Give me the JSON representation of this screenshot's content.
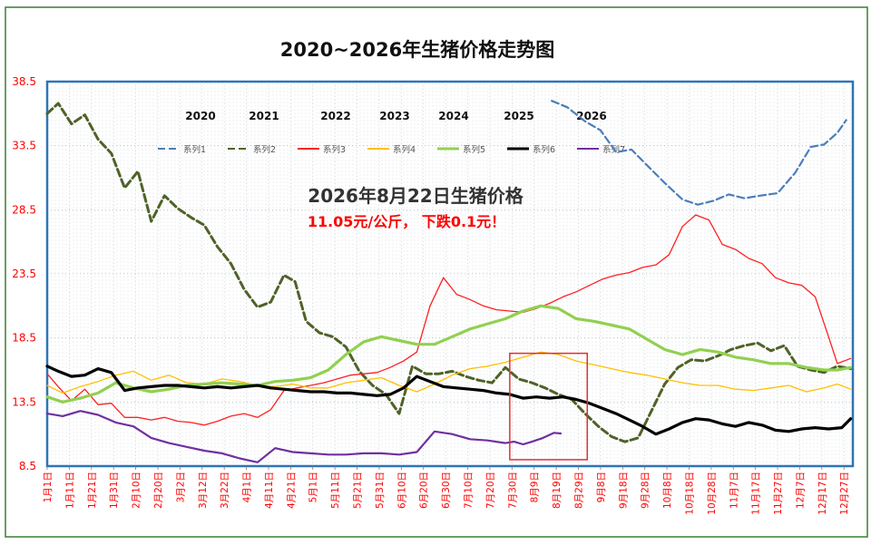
{
  "chart_data": {
    "type": "line",
    "title": "2020~2026年生猪价格走势图",
    "xlabel": "",
    "ylabel": "",
    "ylim": [
      8.5,
      38.5
    ],
    "yticks": [
      "8.5",
      "13.5",
      "18.5",
      "23.5",
      "28.5",
      "33.5",
      "38.5"
    ],
    "grid": "dotted",
    "legend_position": "top",
    "x_tick_labels": [
      "1月1日",
      "1月11日",
      "1月21日",
      "1月31日",
      "2月10日",
      "2月20日",
      "3月2日",
      "3月12日",
      "3月22日",
      "4月1日",
      "4月11日",
      "4月21日",
      "5月1日",
      "5月11日",
      "5月21日",
      "5月31日",
      "6月10日",
      "6月20日",
      "6月30日",
      "7月10日",
      "7月20日",
      "7月30日",
      "8月9日",
      "8月19日",
      "8月29日",
      "9月8日",
      "9月18日",
      "9月28日",
      "10月8日",
      "10月18日",
      "10月28日",
      "11月7日",
      "11月17日",
      "11月27日",
      "12月7日",
      "12月17日",
      "12月27日"
    ],
    "year_labels": [
      "2020",
      "2021",
      "2022",
      "2023",
      "2024",
      "2025",
      "2026"
    ],
    "annotation_title": "2026年8月22日生猪价格",
    "annotation_text": "11.05元/公斤，  下跌0.1元！",
    "highlight_box": {
      "x_from": 210,
      "x_to": 245,
      "y_from": 9.0,
      "y_to": 17.3
    },
    "series": [
      {
        "name": "系列1",
        "color": "#4a7ebb",
        "dash": "8,4",
        "x": [
          229,
          236,
          244,
          251,
          258,
          265,
          273,
          280,
          288,
          295,
          302,
          309,
          316,
          323,
          331,
          339,
          346,
          352,
          358,
          362
        ],
        "y": [
          37.0,
          36.5,
          35.4,
          34.7,
          33.0,
          33.2,
          31.8,
          30.6,
          29.3,
          28.9,
          29.2,
          29.7,
          29.4,
          29.6,
          29.8,
          31.4,
          33.4,
          33.6,
          34.5,
          35.5
        ]
      },
      {
        "name": "系列2",
        "color": "#4f6228",
        "dash": "8,4",
        "x": [
          1,
          6,
          12,
          18,
          24,
          30,
          36,
          42,
          48,
          54,
          60,
          66,
          72,
          78,
          84,
          90,
          96,
          102,
          108,
          113,
          118,
          124,
          130,
          136,
          142,
          148,
          154,
          160,
          166,
          172,
          178,
          184,
          190,
          196,
          202,
          208,
          214,
          220,
          226,
          232,
          238,
          244,
          250,
          256,
          262,
          268,
          274,
          280,
          286,
          292,
          298,
          304,
          310,
          316,
          322,
          328,
          334,
          340,
          346,
          352,
          358,
          364
        ],
        "y": [
          36.0,
          36.8,
          35.2,
          35.9,
          34.0,
          32.9,
          30.2,
          31.5,
          27.6,
          29.6,
          28.6,
          27.9,
          27.3,
          25.6,
          24.3,
          22.3,
          20.9,
          21.3,
          23.4,
          22.9,
          19.8,
          18.9,
          18.6,
          17.8,
          15.9,
          14.8,
          14.1,
          12.6,
          16.3,
          15.7,
          15.7,
          15.9,
          15.5,
          15.2,
          15.0,
          16.2,
          15.3,
          15.0,
          14.6,
          14.1,
          13.7,
          12.6,
          11.6,
          10.8,
          10.4,
          10.7,
          12.8,
          14.9,
          16.2,
          16.8,
          16.7,
          17.1,
          17.6,
          17.9,
          18.1,
          17.5,
          17.9,
          16.3,
          16.0,
          15.8,
          16.3,
          16.1
        ]
      },
      {
        "name": "系列3",
        "color": "#ff2020",
        "x": [
          1,
          6,
          12,
          18,
          24,
          30,
          36,
          42,
          48,
          54,
          60,
          66,
          72,
          78,
          84,
          90,
          96,
          102,
          108,
          114,
          120,
          126,
          132,
          138,
          144,
          150,
          156,
          162,
          168,
          174,
          180,
          186,
          192,
          198,
          204,
          210,
          216,
          222,
          228,
          234,
          240,
          246,
          252,
          258,
          264,
          270,
          276,
          282,
          288,
          294,
          300,
          306,
          312,
          318,
          324,
          330,
          336,
          342,
          348,
          354,
          358,
          364
        ],
        "y": [
          15.7,
          14.7,
          13.6,
          14.5,
          13.3,
          13.4,
          12.3,
          12.3,
          12.1,
          12.3,
          12.0,
          11.9,
          11.7,
          12.0,
          12.4,
          12.6,
          12.3,
          12.9,
          14.4,
          14.6,
          14.8,
          15.0,
          15.3,
          15.6,
          15.7,
          15.8,
          16.2,
          16.7,
          17.4,
          21.0,
          23.2,
          21.9,
          21.5,
          21.0,
          20.7,
          20.6,
          20.5,
          20.8,
          21.2,
          21.7,
          22.1,
          22.6,
          23.1,
          23.4,
          23.6,
          24.0,
          24.2,
          25.0,
          27.2,
          28.1,
          27.7,
          25.8,
          25.4,
          24.7,
          24.3,
          23.2,
          22.8,
          22.6,
          21.7,
          18.6,
          16.5,
          16.9
        ]
      },
      {
        "name": "系列4",
        "color": "#ffc000",
        "x": [
          1,
          8,
          16,
          24,
          32,
          40,
          48,
          56,
          64,
          72,
          80,
          88,
          96,
          104,
          112,
          120,
          128,
          136,
          144,
          152,
          160,
          168,
          176,
          184,
          192,
          200,
          208,
          216,
          224,
          232,
          240,
          248,
          256,
          264,
          272,
          280,
          288,
          296,
          304,
          312,
          320,
          328,
          336,
          344,
          352,
          358,
          364
        ],
        "y": [
          14.8,
          14.2,
          14.7,
          15.1,
          15.6,
          15.9,
          15.2,
          15.6,
          15.0,
          14.9,
          15.3,
          15.1,
          14.8,
          14.7,
          14.9,
          14.6,
          14.6,
          15.0,
          15.2,
          15.4,
          14.8,
          14.3,
          14.9,
          15.6,
          16.1,
          16.3,
          16.6,
          17.0,
          17.4,
          17.2,
          16.7,
          16.4,
          16.1,
          15.8,
          15.6,
          15.3,
          15.0,
          14.8,
          14.8,
          14.5,
          14.4,
          14.6,
          14.8,
          14.3,
          14.6,
          14.9,
          14.5
        ]
      },
      {
        "name": "系列5",
        "color": "#92d050",
        "x": [
          1,
          8,
          16,
          24,
          32,
          40,
          48,
          56,
          64,
          72,
          80,
          88,
          96,
          104,
          112,
          120,
          128,
          136,
          144,
          152,
          160,
          168,
          176,
          184,
          192,
          200,
          208,
          216,
          224,
          232,
          240,
          248,
          256,
          264,
          272,
          280,
          288,
          296,
          304,
          312,
          320,
          328,
          336,
          344,
          352,
          358,
          364
        ],
        "y": [
          13.9,
          13.5,
          13.8,
          14.2,
          15.0,
          14.6,
          14.3,
          14.5,
          14.8,
          14.9,
          15.0,
          14.9,
          14.8,
          15.1,
          15.2,
          15.4,
          16.0,
          17.2,
          18.2,
          18.6,
          18.3,
          18.0,
          18.0,
          18.6,
          19.2,
          19.6,
          20.0,
          20.6,
          21.0,
          20.8,
          20.0,
          19.8,
          19.5,
          19.2,
          18.4,
          17.6,
          17.2,
          17.6,
          17.4,
          17.0,
          16.8,
          16.5,
          16.5,
          16.2,
          16.0,
          16.0,
          16.2
        ]
      },
      {
        "name": "系列6",
        "color": "#000000",
        "x": [
          1,
          6,
          12,
          18,
          24,
          30,
          36,
          42,
          48,
          54,
          60,
          66,
          72,
          78,
          84,
          90,
          96,
          102,
          108,
          114,
          120,
          126,
          132,
          138,
          144,
          150,
          156,
          162,
          168,
          174,
          180,
          186,
          192,
          198,
          204,
          210,
          216,
          222,
          228,
          234,
          240,
          246,
          252,
          258,
          264,
          270,
          276,
          282,
          288,
          294,
          300,
          306,
          312,
          318,
          324,
          330,
          336,
          342,
          348,
          354,
          360,
          364
        ],
        "y": [
          16.3,
          15.9,
          15.5,
          15.6,
          16.1,
          15.8,
          14.4,
          14.6,
          14.7,
          14.8,
          14.8,
          14.7,
          14.6,
          14.7,
          14.6,
          14.7,
          14.8,
          14.6,
          14.5,
          14.4,
          14.3,
          14.3,
          14.2,
          14.2,
          14.1,
          14.0,
          14.1,
          14.6,
          15.5,
          15.1,
          14.7,
          14.6,
          14.5,
          14.4,
          14.2,
          14.1,
          13.8,
          13.9,
          13.8,
          13.9,
          13.7,
          13.4,
          13.0,
          12.6,
          12.1,
          11.6,
          11.0,
          11.4,
          11.9,
          12.2,
          12.1,
          11.8,
          11.6,
          11.9,
          11.7,
          11.3,
          11.2,
          11.4,
          11.5,
          11.4,
          11.5,
          12.2
        ]
      },
      {
        "name": "系列7",
        "color": "#7030a0",
        "x": [
          1,
          8,
          16,
          24,
          32,
          40,
          48,
          56,
          64,
          72,
          80,
          88,
          96,
          104,
          112,
          120,
          128,
          136,
          144,
          152,
          160,
          168,
          176,
          184,
          192,
          200,
          208,
          212,
          216,
          220,
          225,
          230,
          233
        ],
        "y": [
          12.6,
          12.4,
          12.8,
          12.5,
          11.9,
          11.6,
          10.7,
          10.3,
          10.0,
          9.7,
          9.5,
          9.1,
          8.8,
          9.9,
          9.6,
          9.5,
          9.4,
          9.4,
          9.5,
          9.5,
          9.4,
          9.6,
          11.2,
          11.0,
          10.6,
          10.5,
          10.3,
          10.4,
          10.2,
          10.4,
          10.7,
          11.1,
          11.05
        ]
      }
    ]
  }
}
